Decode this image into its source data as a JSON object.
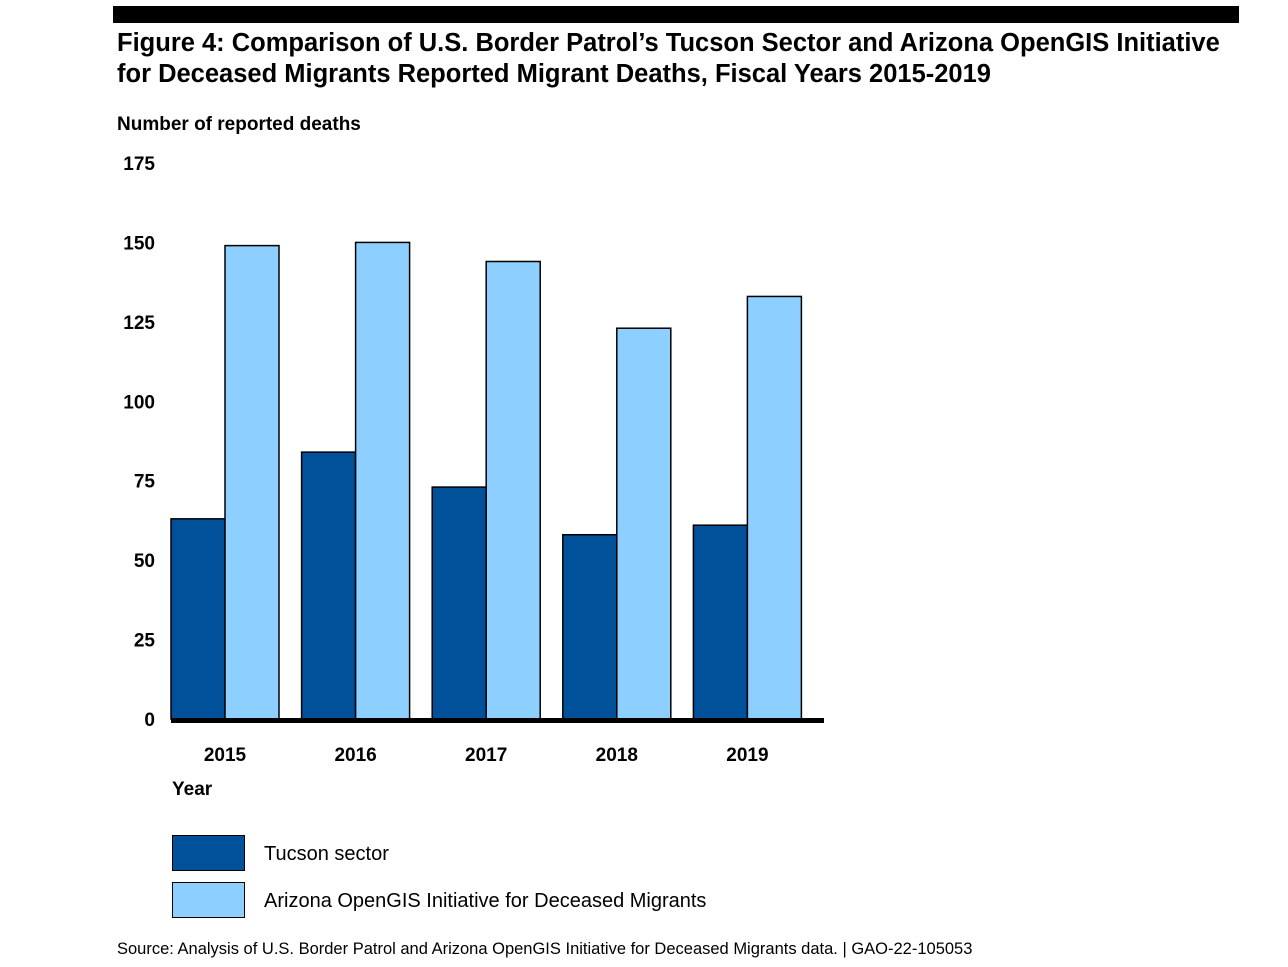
{
  "figure": {
    "title": "Figure 4: Comparison of U.S. Border Patrol’s Tucson Sector and Arizona OpenGIS Initiative for Deceased Migrants Reported Migrant Deaths, Fiscal Years 2015-2019",
    "source": "Source: Analysis of U.S. Border Patrol and Arizona OpenGIS Initiative for Deceased Migrants data.  |  GAO-22-105053"
  },
  "chart_data": {
    "type": "bar",
    "categories": [
      "2015",
      "2016",
      "2017",
      "2018",
      "2019"
    ],
    "series": [
      {
        "name": "Tucson sector",
        "values": [
          63,
          84,
          73,
          58,
          61
        ],
        "color": "#00519A"
      },
      {
        "name": "Arizona OpenGIS Initiative for Deceased Migrants",
        "values": [
          149,
          150,
          144,
          123,
          133
        ],
        "color": "#8DCFFF"
      }
    ],
    "xlabel": "Year",
    "ylabel": "Number of reported deaths",
    "ylim": [
      0,
      175
    ],
    "yticks": [
      0,
      25,
      50,
      75,
      100,
      125,
      150,
      175
    ],
    "grid": false,
    "legend_position": "bottom-left"
  }
}
